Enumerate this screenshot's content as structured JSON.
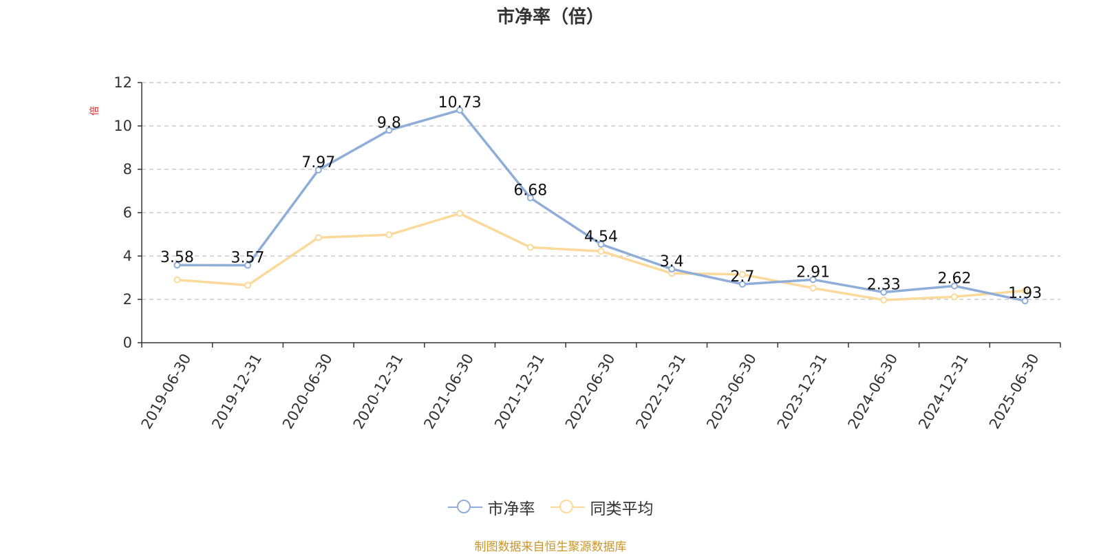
{
  "chart_data": {
    "type": "line",
    "title": "市净率（倍）",
    "y_unit_label": "倍",
    "categories": [
      "2019-06-30",
      "2019-12-31",
      "2020-06-30",
      "2020-12-31",
      "2021-06-30",
      "2021-12-31",
      "2022-06-30",
      "2022-12-31",
      "2023-06-30",
      "2023-12-31",
      "2024-06-30",
      "2024-12-31",
      "2025-06-30"
    ],
    "ylim": [
      0,
      12
    ],
    "yticks": [
      0,
      2,
      4,
      6,
      8,
      10,
      12
    ],
    "grid": true,
    "legend_position": "bottom",
    "series": [
      {
        "name": "市净率",
        "color": "#8eadd8",
        "show_labels": true,
        "values": [
          3.58,
          3.57,
          7.97,
          9.8,
          10.73,
          6.68,
          4.54,
          3.4,
          2.7,
          2.91,
          2.33,
          2.62,
          1.93
        ]
      },
      {
        "name": "同类平均",
        "color": "#fbd99a",
        "show_labels": false,
        "values": [
          2.9,
          2.65,
          4.85,
          4.98,
          5.96,
          4.4,
          4.22,
          3.2,
          3.15,
          2.52,
          1.97,
          2.12,
          2.4
        ]
      }
    ]
  },
  "source_text": "制图数据来自恒生聚源数据库"
}
